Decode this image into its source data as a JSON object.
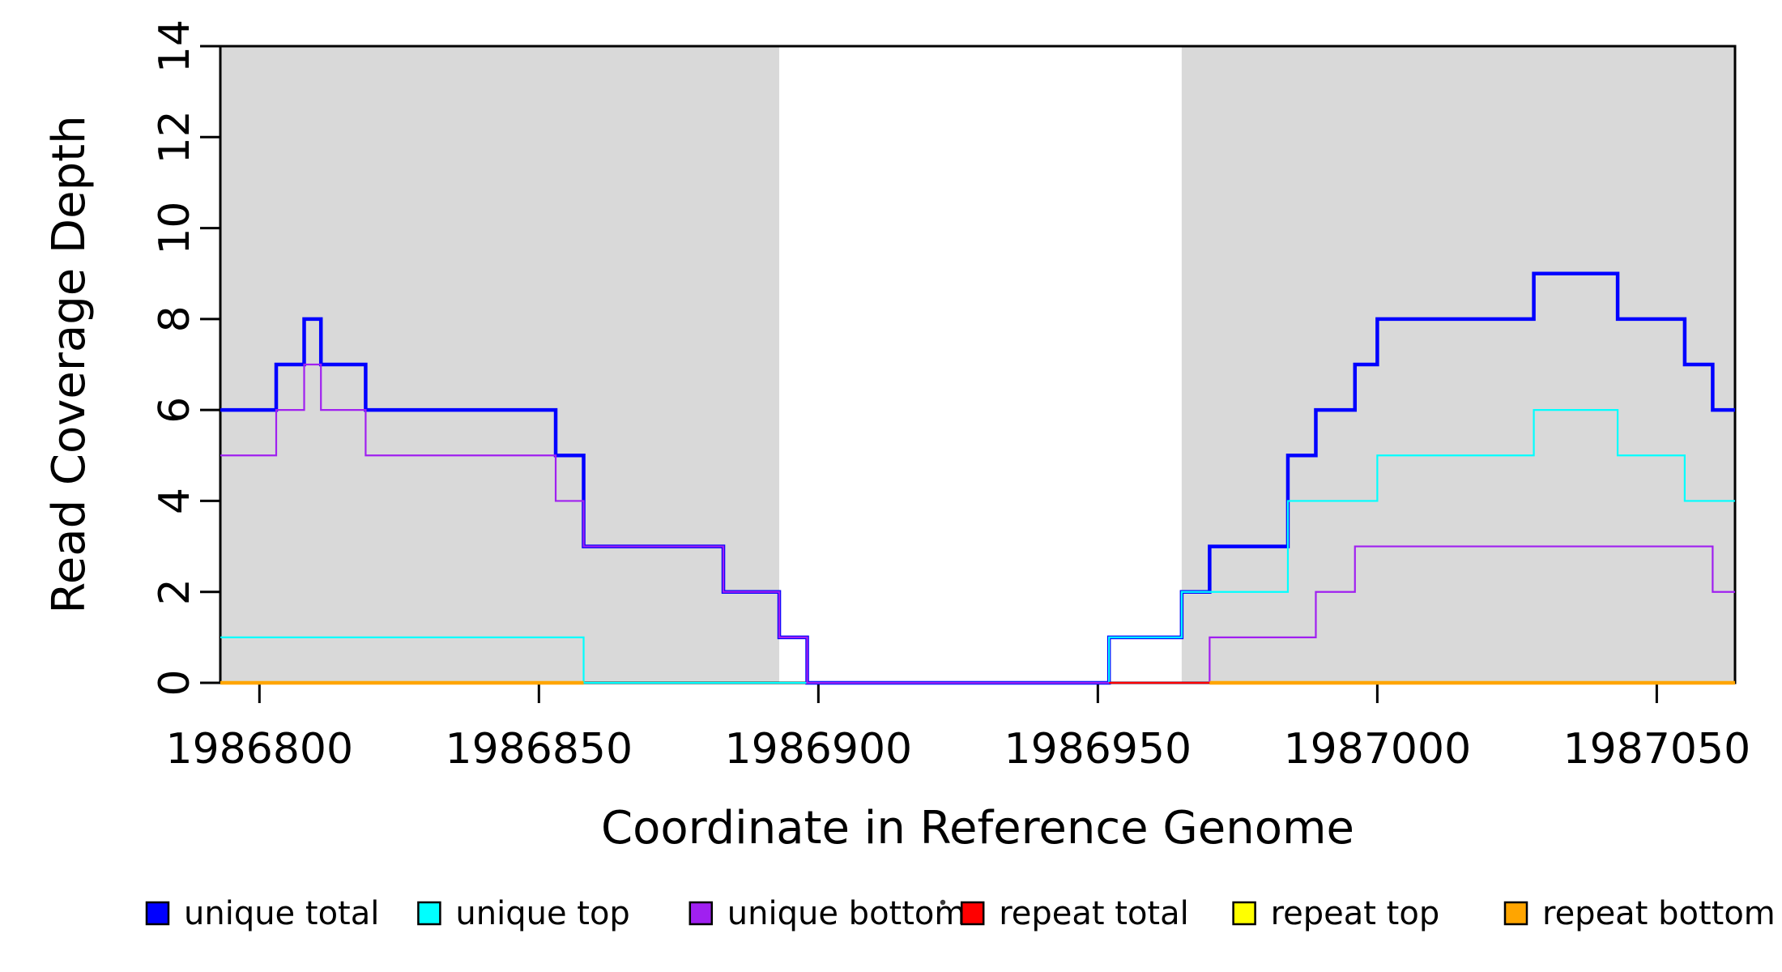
{
  "figure": {
    "title": "",
    "xlabel": "Coordinate in Reference Genome",
    "ylabel": "Read Coverage Depth",
    "background_color": "#FFFFFF",
    "frame_color": "#000000",
    "shade_color": "#D9D9D9",
    "artifact_dot_color": "#3B3B3B",
    "legend": [
      {
        "label": "unique total",
        "color": "#0000FF"
      },
      {
        "label": "unique top",
        "color": "#00FFFF"
      },
      {
        "label": "unique bottom",
        "color": "#A020F0"
      },
      {
        "label": "repeat total",
        "color": "#FF0000"
      },
      {
        "label": "repeat top",
        "color": "#FFFF00"
      },
      {
        "label": "repeat bottom",
        "color": "#FFA500"
      }
    ]
  },
  "chart_data": {
    "type": "line",
    "line_style": "step",
    "title": "",
    "xlabel": "Coordinate in Reference Genome",
    "ylabel": "Read Coverage Depth",
    "xlim": [
      1986793,
      1987064
    ],
    "ylim": [
      0,
      14
    ],
    "x_ticks": [
      1986800,
      1986850,
      1986900,
      1986950,
      1987000,
      1987050
    ],
    "x_tick_labels": [
      "1986800",
      "1986850",
      "1986900",
      "1986950",
      "1987000",
      "1987050"
    ],
    "y_ticks": [
      0,
      2,
      4,
      6,
      8,
      10,
      12,
      14
    ],
    "y_tick_labels": [
      "0",
      "2",
      "4",
      "6",
      "8",
      "10",
      "12",
      "14"
    ],
    "grid": false,
    "legend_position": "bottom",
    "shaded_regions": [
      {
        "x0": 1986793,
        "x1": 1986893,
        "color": "#D9D9D9"
      },
      {
        "x0": 1986965,
        "x1": 1987064,
        "color": "#D9D9D9"
      }
    ],
    "series": [
      {
        "name": "unique total",
        "color": "#0000FF",
        "line_width": 4.5,
        "segments": [
          {
            "end": 1987064,
            "steps": [
              [
                1986793,
                6
              ],
              [
                1986803,
                7
              ],
              [
                1986808,
                8
              ],
              [
                1986811,
                7
              ],
              [
                1986819,
                6
              ],
              [
                1986853,
                5
              ],
              [
                1986858,
                3
              ],
              [
                1986883,
                2
              ],
              [
                1986893,
                1
              ],
              [
                1986898,
                0
              ],
              [
                1986952,
                1
              ],
              [
                1986965,
                2
              ],
              [
                1986970,
                3
              ],
              [
                1986984,
                5
              ],
              [
                1986989,
                6
              ],
              [
                1986996,
                7
              ],
              [
                1987000,
                8
              ],
              [
                1987028,
                9
              ],
              [
                1987043,
                8
              ],
              [
                1987055,
                7
              ],
              [
                1987060,
                6
              ]
            ]
          }
        ]
      },
      {
        "name": "unique top",
        "color": "#00FFFF",
        "line_width": 2.2,
        "segments": [
          {
            "end": 1987064,
            "steps": [
              [
                1986793,
                1
              ],
              [
                1986858,
                0
              ],
              [
                1986952,
                1
              ],
              [
                1986965,
                2
              ],
              [
                1986984,
                4
              ],
              [
                1987000,
                5
              ],
              [
                1987028,
                6
              ],
              [
                1987043,
                5
              ],
              [
                1987055,
                4
              ]
            ]
          }
        ]
      },
      {
        "name": "unique bottom",
        "color": "#A020F0",
        "line_width": 2.2,
        "segments": [
          {
            "end": 1987064,
            "steps": [
              [
                1986793,
                5
              ],
              [
                1986803,
                6
              ],
              [
                1986808,
                7
              ],
              [
                1986811,
                6
              ],
              [
                1986819,
                5
              ],
              [
                1986853,
                4
              ],
              [
                1986858,
                3
              ],
              [
                1986883,
                2
              ],
              [
                1986893,
                1
              ],
              [
                1986898,
                0
              ],
              [
                1986970,
                1
              ],
              [
                1986989,
                2
              ],
              [
                1986996,
                3
              ],
              [
                1987060,
                2
              ]
            ]
          }
        ]
      },
      {
        "name": "repeat total",
        "color": "#FF0000",
        "line_width": 2.2,
        "segments": [
          {
            "end": 1986858,
            "steps": [
              [
                1986793,
                0
              ]
            ]
          },
          {
            "end": 1987064,
            "steps": [
              [
                1986952,
                0
              ]
            ]
          }
        ]
      },
      {
        "name": "repeat top",
        "color": "#FFFF00",
        "line_width": 2.2,
        "segments": [
          {
            "end": 1986858,
            "steps": [
              [
                1986793,
                0
              ]
            ]
          },
          {
            "end": 1987064,
            "steps": [
              [
                1986970,
                0
              ]
            ]
          }
        ]
      },
      {
        "name": "repeat bottom",
        "color": "#FFA500",
        "line_width": 4.5,
        "segments": [
          {
            "end": 1986858,
            "steps": [
              [
                1986793,
                0
              ]
            ]
          },
          {
            "end": 1987064,
            "steps": [
              [
                1986970,
                0
              ]
            ]
          }
        ]
      }
    ]
  }
}
